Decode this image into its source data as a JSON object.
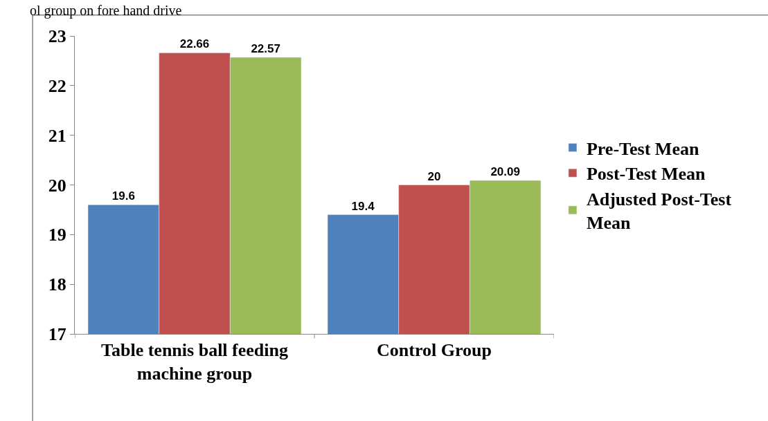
{
  "chart_data": {
    "type": "bar",
    "annotations": [
      "ol group on fore hand drive"
    ],
    "categories": [
      "Table tennis ball feeding machine group",
      "Control Group"
    ],
    "series": [
      {
        "name": "Pre-Test Mean",
        "color": "#4f81bd",
        "values": [
          19.6,
          19.4
        ]
      },
      {
        "name": "Post-Test Mean",
        "color": "#c0504d",
        "values": [
          22.66,
          20
        ]
      },
      {
        "name": "Adjusted Post-Test Mean",
        "color": "#9bbb59",
        "values": [
          22.57,
          20.09
        ]
      }
    ],
    "ylim": [
      17,
      23
    ],
    "yticks": [
      17,
      18,
      19,
      20,
      21,
      22,
      23
    ],
    "grid": false,
    "legend": "right",
    "data_labels": true
  }
}
